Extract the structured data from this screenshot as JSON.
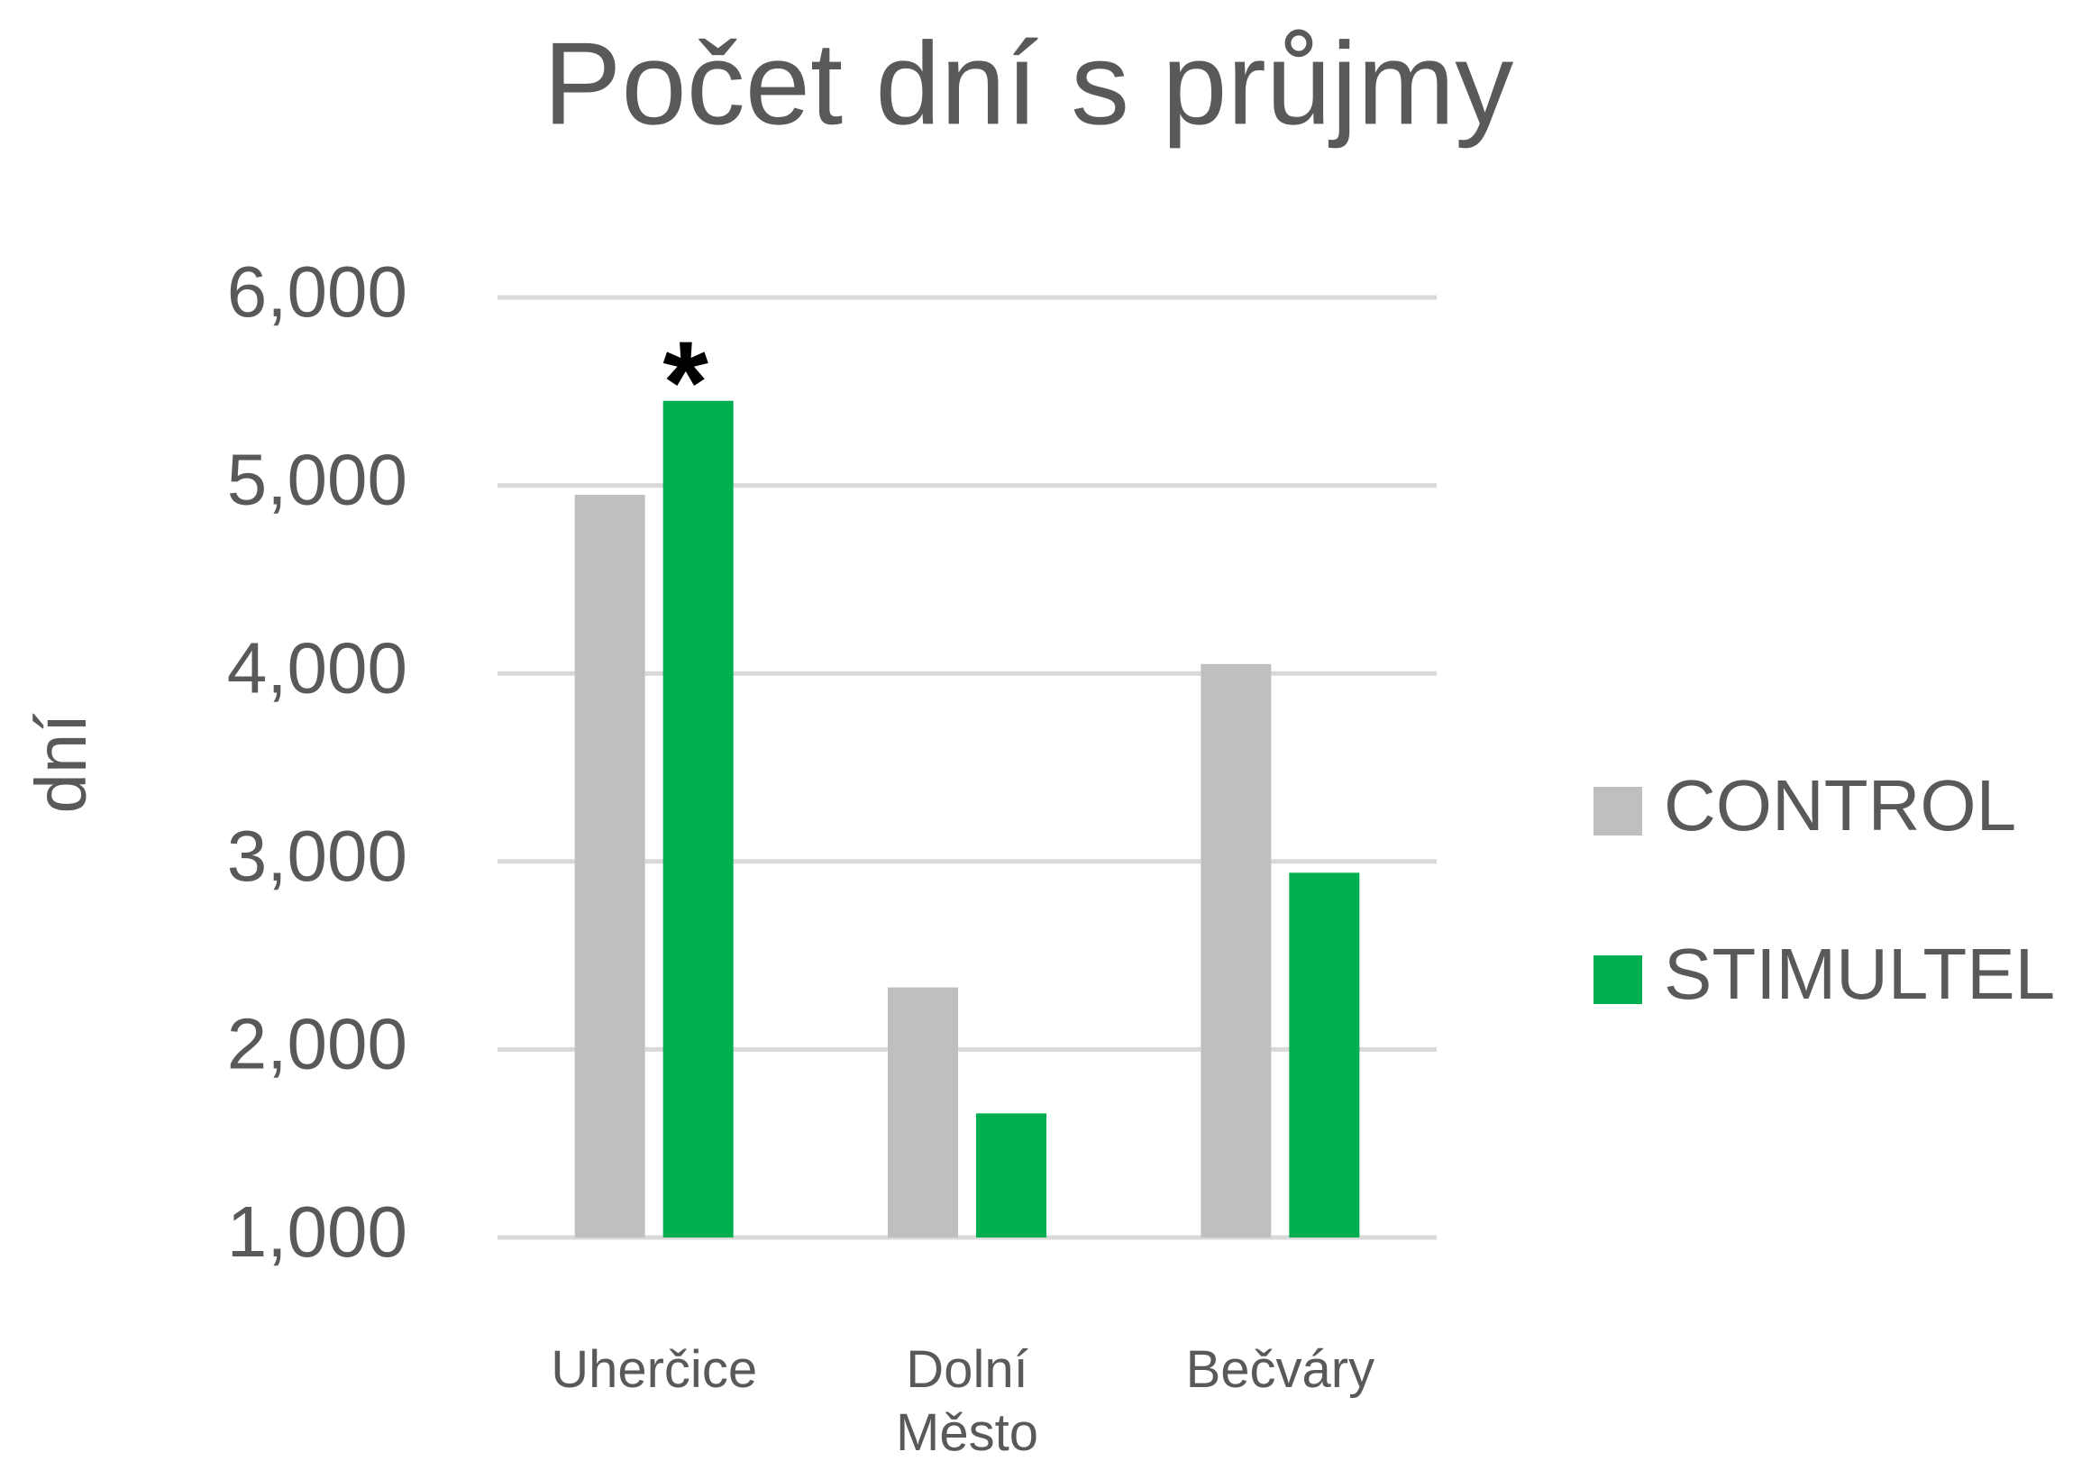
{
  "chart_data": {
    "type": "bar",
    "title": "Počet dní s průjmy",
    "y_axis_label": "dní",
    "categories": [
      "Uherčice",
      "Dolní Město",
      "Bečváry"
    ],
    "series": [
      {
        "name": "CONTROL",
        "color": "#bfbfbf",
        "values": [
          4950,
          2330,
          4050
        ]
      },
      {
        "name": "STIMULTEL",
        "color": "#00b050",
        "values": [
          5450,
          1660,
          2940
        ]
      }
    ],
    "ylim": [
      1000,
      6000
    ],
    "yticks": [
      {
        "value": 1000,
        "label": "1,000"
      },
      {
        "value": 2000,
        "label": "2,000"
      },
      {
        "value": 3000,
        "label": "3,000"
      },
      {
        "value": 4000,
        "label": "4,000"
      },
      {
        "value": 5000,
        "label": "5,000"
      },
      {
        "value": 6000,
        "label": "6,000"
      }
    ],
    "grid": true,
    "legend": "right",
    "annotations": [
      {
        "text": "*"
      }
    ]
  }
}
